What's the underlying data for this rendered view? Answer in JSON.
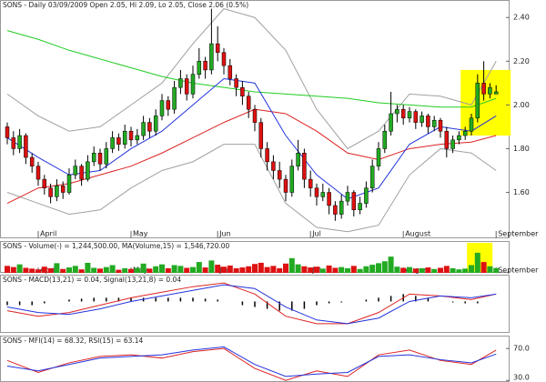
{
  "chart_data": {
    "type": "candlestick",
    "title": "SONS - Daily 03/09/2009 Open 2.05, Hi 2.09, Lo 2.05, Close 2.06 (0.5%)",
    "categories": [
      null,
      null,
      null,
      null,
      null,
      "April",
      null,
      null,
      null,
      null,
      null,
      null,
      null,
      null,
      null,
      null,
      null,
      null,
      null,
      null,
      "May",
      null,
      null,
      null,
      null,
      null,
      null,
      null,
      null,
      null,
      null,
      null,
      null,
      null,
      "Jun",
      null,
      null,
      null,
      null,
      null,
      null,
      null,
      null,
      null,
      null,
      null,
      null,
      null,
      null,
      "Jul",
      null,
      null,
      null,
      null,
      null,
      null,
      null,
      null,
      null,
      null,
      null,
      null,
      null,
      null,
      "August",
      null,
      null,
      null,
      null,
      null,
      null,
      null,
      null,
      null,
      null,
      null,
      null,
      null,
      null,
      "September"
    ],
    "candles": [
      [
        1.9,
        1.92,
        1.82,
        1.85
      ],
      [
        1.85,
        1.88,
        1.77,
        1.8
      ],
      [
        1.8,
        1.89,
        1.78,
        1.86
      ],
      [
        1.86,
        1.87,
        1.73,
        1.76
      ],
      [
        1.76,
        1.78,
        1.69,
        1.72
      ],
      [
        1.72,
        1.74,
        1.63,
        1.66
      ],
      [
        1.66,
        1.68,
        1.59,
        1.62
      ],
      [
        1.62,
        1.64,
        1.55,
        1.58
      ],
      [
        1.58,
        1.66,
        1.56,
        1.63
      ],
      [
        1.63,
        1.65,
        1.57,
        1.6
      ],
      [
        1.6,
        1.71,
        1.59,
        1.68
      ],
      [
        1.68,
        1.75,
        1.66,
        1.72
      ],
      [
        1.72,
        1.73,
        1.63,
        1.66
      ],
      [
        1.66,
        1.77,
        1.65,
        1.74
      ],
      [
        1.74,
        1.81,
        1.72,
        1.78
      ],
      [
        1.78,
        1.8,
        1.7,
        1.73
      ],
      [
        1.73,
        1.83,
        1.71,
        1.8
      ],
      [
        1.8,
        1.88,
        1.78,
        1.85
      ],
      [
        1.85,
        1.87,
        1.79,
        1.82
      ],
      [
        1.82,
        1.91,
        1.8,
        1.88
      ],
      [
        1.88,
        1.9,
        1.81,
        1.84
      ],
      [
        1.84,
        1.89,
        1.82,
        1.86
      ],
      [
        1.86,
        1.95,
        1.84,
        1.92
      ],
      [
        1.92,
        1.94,
        1.85,
        1.88
      ],
      [
        1.88,
        1.98,
        1.86,
        1.95
      ],
      [
        1.95,
        2.05,
        1.93,
        2.02
      ],
      [
        2.02,
        2.04,
        1.95,
        1.98
      ],
      [
        1.98,
        2.11,
        1.96,
        2.08
      ],
      [
        2.08,
        2.16,
        2.05,
        2.12
      ],
      [
        2.12,
        2.14,
        2.02,
        2.05
      ],
      [
        2.05,
        2.18,
        2.03,
        2.14
      ],
      [
        2.14,
        2.26,
        2.12,
        2.2
      ],
      [
        2.2,
        2.22,
        2.12,
        2.16
      ],
      [
        2.16,
        2.44,
        2.14,
        2.28
      ],
      [
        2.28,
        2.36,
        2.2,
        2.24
      ],
      [
        2.24,
        2.26,
        2.14,
        2.18
      ],
      [
        2.18,
        2.21,
        2.09,
        2.12
      ],
      [
        2.12,
        2.14,
        2.04,
        2.08
      ],
      [
        2.08,
        2.11,
        2.0,
        2.04
      ],
      [
        2.04,
        2.06,
        1.94,
        1.98
      ],
      [
        1.98,
        2.0,
        1.88,
        1.92
      ],
      [
        1.92,
        1.94,
        1.76,
        1.8
      ],
      [
        1.8,
        1.83,
        1.7,
        1.74
      ],
      [
        1.74,
        1.77,
        1.66,
        1.7
      ],
      [
        1.7,
        1.74,
        1.62,
        1.66
      ],
      [
        1.66,
        1.68,
        1.56,
        1.6
      ],
      [
        1.6,
        1.75,
        1.58,
        1.72
      ],
      [
        1.72,
        1.84,
        1.7,
        1.78
      ],
      [
        1.78,
        1.8,
        1.62,
        1.66
      ],
      [
        1.66,
        1.7,
        1.58,
        1.62
      ],
      [
        1.62,
        1.64,
        1.54,
        1.58
      ],
      [
        1.58,
        1.64,
        1.56,
        1.6
      ],
      [
        1.6,
        1.62,
        1.5,
        1.54
      ],
      [
        1.54,
        1.56,
        1.47,
        1.5
      ],
      [
        1.5,
        1.59,
        1.48,
        1.56
      ],
      [
        1.56,
        1.63,
        1.54,
        1.6
      ],
      [
        1.6,
        1.61,
        1.49,
        1.52
      ],
      [
        1.52,
        1.58,
        1.5,
        1.55
      ],
      [
        1.55,
        1.65,
        1.53,
        1.62
      ],
      [
        1.62,
        1.75,
        1.6,
        1.72
      ],
      [
        1.72,
        1.83,
        1.7,
        1.8
      ],
      [
        1.8,
        1.91,
        1.78,
        1.88
      ],
      [
        1.88,
        2.06,
        1.86,
        1.96
      ],
      [
        1.96,
        2.0,
        1.92,
        1.98
      ],
      [
        1.98,
        2.0,
        1.91,
        1.94
      ],
      [
        1.94,
        1.99,
        1.92,
        1.97
      ],
      [
        1.97,
        1.98,
        1.89,
        1.92
      ],
      [
        1.92,
        1.97,
        1.9,
        1.95
      ],
      [
        1.95,
        1.96,
        1.87,
        1.9
      ],
      [
        1.9,
        1.95,
        1.88,
        1.93
      ],
      [
        1.93,
        1.94,
        1.85,
        1.88
      ],
      [
        1.88,
        1.9,
        1.76,
        1.8
      ],
      [
        1.8,
        1.86,
        1.78,
        1.84
      ],
      [
        1.84,
        1.88,
        1.82,
        1.86
      ],
      [
        1.86,
        1.9,
        1.84,
        1.88
      ],
      [
        1.88,
        1.96,
        1.86,
        1.94
      ],
      [
        1.94,
        2.14,
        1.92,
        2.1
      ],
      [
        2.1,
        2.2,
        2.02,
        2.05
      ],
      [
        2.05,
        2.1,
        2.03,
        2.08
      ],
      [
        2.05,
        2.09,
        2.05,
        2.06
      ]
    ],
    "up_color": "#22aa22",
    "down_color": "#dd1111",
    "ylim": [
      1.39,
      2.48
    ],
    "yticks": [
      {
        "value": 1.6,
        "label": "1.60"
      },
      {
        "value": 1.8,
        "label": "1.80"
      },
      {
        "value": 2.0,
        "label": "2.00"
      },
      {
        "value": 2.2,
        "label": "2.20"
      },
      {
        "value": 2.4,
        "label": "2.40"
      }
    ],
    "overlay_x": [
      0,
      5,
      10,
      15,
      20,
      25,
      30,
      35,
      40,
      45,
      50,
      55,
      60,
      65,
      70,
      75,
      79
    ],
    "overlays": [
      {
        "color": "#a0a0a0",
        "values": [
          2.05,
          1.95,
          1.88,
          1.9,
          2.0,
          2.1,
          2.28,
          2.44,
          2.4,
          2.25,
          1.98,
          1.8,
          1.88,
          2.05,
          2.04,
          2.0,
          2.2
        ]
      },
      {
        "color": "#a0a0a0",
        "values": [
          1.6,
          1.55,
          1.5,
          1.52,
          1.62,
          1.7,
          1.74,
          1.82,
          1.82,
          1.55,
          1.44,
          1.42,
          1.45,
          1.68,
          1.8,
          1.78,
          1.7
        ]
      },
      {
        "color": "#22cc22",
        "values": [
          2.34,
          2.3,
          2.25,
          2.21,
          2.17,
          2.13,
          2.1,
          2.08,
          2.06,
          2.05,
          2.04,
          2.03,
          2.01,
          2.0,
          1.99,
          1.99,
          2.03
        ]
      },
      {
        "color": "#dd2222",
        "values": [
          1.55,
          1.62,
          1.64,
          1.68,
          1.72,
          1.78,
          1.85,
          1.92,
          1.98,
          1.96,
          1.88,
          1.78,
          1.75,
          1.8,
          1.82,
          1.83,
          1.86
        ]
      },
      {
        "color": "#2233dd",
        "values": [
          1.85,
          1.76,
          1.68,
          1.7,
          1.8,
          1.88,
          2.0,
          2.12,
          2.1,
          1.86,
          1.68,
          1.57,
          1.62,
          1.82,
          1.9,
          1.88,
          1.95
        ]
      }
    ],
    "highlight": {
      "color": "#ffff00",
      "start": 74,
      "end": 79,
      "low": 1.86,
      "high": 2.16
    },
    "volume_title": "SONS - Volume(-) = 1,244,500.00, MA(Volume,15) = 1,546,720.00",
    "volume_lim": [
      0,
      8000000
    ],
    "volume": [
      1800000,
      1500000,
      2200000,
      1300000,
      1100000,
      900000,
      1600000,
      1200000,
      2500000,
      1000000,
      1400000,
      1800000,
      900000,
      2600000,
      1300000,
      1100000,
      1500000,
      2000000,
      800000,
      1200000,
      1000000,
      1300000,
      2400000,
      1100000,
      1700000,
      2200000,
      1200000,
      2000000,
      1800000,
      1300000,
      1500000,
      2800000,
      1400000,
      3200000,
      2100000,
      1600000,
      1900000,
      1200000,
      1400000,
      1700000,
      2300000,
      2600000,
      1500000,
      1800000,
      1200000,
      2400000,
      3800000,
      2200000,
      1700000,
      1400000,
      1600000,
      1100000,
      1900000,
      1300000,
      1500000,
      1200000,
      1800000,
      1000000,
      1700000,
      2100000,
      2500000,
      3000000,
      4200000,
      1600000,
      1300000,
      1500000,
      1100000,
      1200000,
      1400000,
      1000000,
      1300000,
      1800000,
      1200000,
      900000,
      1100000,
      2000000,
      5200000,
      2800000,
      1700000,
      1244500
    ],
    "macd_title": "SONS - MACD(13,21) = 0.04, Signal(13,21,8) = 0.04",
    "macd_lim": [
      -0.17,
      0.14
    ],
    "macd_series": [
      {
        "color": "#dd2222",
        "values": [
          -0.05,
          -0.08,
          -0.06,
          -0.02,
          0.02,
          0.05,
          0.08,
          0.1,
          0.04,
          -0.08,
          -0.12,
          -0.12,
          -0.06,
          0.04,
          0.03,
          0.01,
          0.04
        ]
      },
      {
        "color": "#2233dd",
        "values": [
          -0.03,
          -0.06,
          -0.07,
          -0.04,
          0.0,
          0.03,
          0.06,
          0.09,
          0.07,
          -0.03,
          -0.1,
          -0.12,
          -0.09,
          0.0,
          0.03,
          0.02,
          0.04
        ]
      }
    ],
    "macd_hist_x": [
      0,
      2,
      4,
      6,
      8,
      10,
      12,
      14,
      16,
      18,
      20,
      22,
      24,
      26,
      28,
      30,
      32,
      34,
      36,
      38,
      40,
      42,
      44,
      46,
      48,
      50,
      52,
      54,
      56,
      58,
      60,
      62,
      64,
      66,
      68,
      70,
      72,
      74,
      76,
      78
    ],
    "macd_hist": [
      -0.02,
      -0.02,
      -0.02,
      -0.01,
      0.0,
      0.01,
      0.015,
      0.02,
      0.02,
      0.02,
      0.02,
      0.02,
      0.02,
      0.02,
      0.02,
      0.02,
      0.015,
      0.01,
      0.0,
      -0.02,
      -0.03,
      -0.04,
      -0.05,
      -0.05,
      -0.04,
      -0.02,
      -0.01,
      -0.005,
      0.0,
      0.01,
      0.02,
      0.03,
      0.04,
      0.03,
      0.02,
      0.0,
      -0.005,
      -0.01,
      -0.01,
      0.0
    ],
    "osc_title": "SONS - MFI(14) = 68.32, RSI(15) = 63.14",
    "osc_lim": [
      28,
      85
    ],
    "osc_ticks": [
      {
        "value": 70,
        "label": "70.0"
      },
      {
        "value": 30,
        "label": "30.0"
      }
    ],
    "osc_series": [
      {
        "color": "#dd2222",
        "values": [
          55,
          40,
          52,
          60,
          62,
          58,
          66,
          70,
          45,
          30,
          42,
          35,
          62,
          68,
          55,
          50,
          68
        ]
      },
      {
        "color": "#2233dd",
        "values": [
          48,
          42,
          50,
          58,
          60,
          62,
          68,
          72,
          50,
          35,
          38,
          40,
          60,
          62,
          56,
          52,
          63
        ]
      }
    ]
  }
}
